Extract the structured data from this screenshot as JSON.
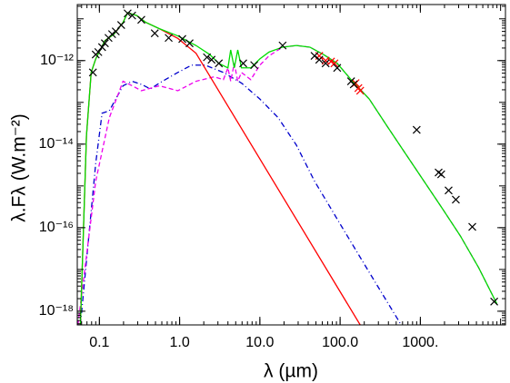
{
  "chart_data": {
    "type": "line",
    "x_label": "λ (µm)",
    "y_label": "λ.Fλ (W.m⁻²)",
    "xscale": "log",
    "yscale": "log",
    "minor_ticks": true,
    "xlim": [
      0.053,
      11500
    ],
    "ylim": [
      4.7e-19,
      2.2e-11
    ],
    "xticks": [
      0.1,
      {
        "value": 1,
        "label": "1.0"
      },
      {
        "value": 10,
        "label": "10.0"
      },
      {
        "value": 100,
        "label": "100.0"
      },
      {
        "value": 1000,
        "label": "1000."
      }
    ],
    "yticks": [
      {
        "value": 1e-18,
        "label": "10⁻¹⁸"
      },
      {
        "value": 1e-16,
        "label": "10⁻¹⁶"
      },
      {
        "value": 1e-14,
        "label": "10⁻¹⁴"
      },
      {
        "value": 1e-12,
        "label": "10⁻¹²"
      }
    ],
    "series": [
      {
        "color": "#0000cc",
        "style": "dashdot",
        "x": [
          0.058,
          0.09,
          0.108,
          0.133,
          0.197,
          0.256,
          0.333,
          0.433,
          0.56,
          0.95,
          1.41,
          2.08,
          3.51,
          5.9,
          10,
          16.9,
          28.5,
          48,
          105,
          231,
          577
        ],
        "values": [
          4.7e-19,
          3.5e-15,
          5.5e-14,
          6.3e-14,
          2.5e-13,
          3.2e-13,
          2.7e-13,
          2.1e-13,
          2.9e-13,
          5.2e-13,
          7.8e-13,
          7.8e-13,
          5.2e-13,
          2.9e-13,
          1.2e-13,
          4.3e-14,
          9.5e-15,
          1.3e-15,
          1.05e-16,
          8.5e-18,
          4.7e-19
        ]
      },
      {
        "color": "#ee00ee",
        "style": "dashed",
        "x": [
          0.054,
          0.09,
          0.133,
          0.197,
          0.256,
          0.333,
          0.56,
          0.95,
          1.6,
          2.7,
          3.51,
          4.0,
          4.33,
          4.8,
          5.3,
          5.9,
          7.7,
          10,
          13,
          19.2,
          28.5,
          42,
          62,
          92,
          137,
          231,
          390,
          658,
          1110,
          1875,
          3160,
          5330,
          9000
        ],
        "values": [
          4.7e-19,
          1.3e-15,
          4.3e-14,
          3.2e-13,
          2.5e-13,
          1.9e-13,
          2.5e-13,
          1.9e-13,
          3.2e-13,
          4.1e-13,
          3.5e-13,
          6.7e-13,
          3.2e-13,
          8.6e-13,
          3.2e-13,
          5.2e-13,
          3.5e-13,
          7.8e-13,
          1.3e-12,
          2.1e-12,
          2.3e-12,
          2.1e-12,
          1.4e-12,
          8.6e-13,
          3.5e-13,
          1.2e-13,
          2.6e-14,
          5.8e-15,
          1.3e-15,
          2.9e-16,
          6.3e-17,
          1.1e-17,
          1.5e-18
        ]
      },
      {
        "color": "#ff0000",
        "style": "solid",
        "x": [
          0.058,
          0.069,
          0.079,
          0.09,
          0.117,
          0.152,
          0.197,
          0.225,
          0.292,
          0.38,
          0.56,
          0.95,
          1.6,
          178
        ],
        "values": [
          4.7e-19,
          1.6e-14,
          5.2e-13,
          1.1e-12,
          3e-12,
          4.3e-12,
          8.2e-12,
          1.4e-11,
          1.2e-11,
          8.2e-12,
          5.8e-12,
          3.4e-12,
          1.5e-12,
          4.7e-19
        ]
      },
      {
        "color": "#00dd00",
        "style": "solid",
        "x": [
          0.058,
          0.069,
          0.079,
          0.09,
          0.117,
          0.152,
          0.197,
          0.225,
          0.292,
          0.38,
          0.56,
          0.95,
          1.6,
          2.37,
          3.08,
          4.0,
          4.33,
          4.8,
          5.3,
          5.9,
          7.7,
          10,
          13,
          19.2,
          28.5,
          42,
          62,
          92,
          137,
          231,
          390,
          658,
          1110,
          1875,
          3160,
          5330,
          9000
        ],
        "values": [
          4.7e-19,
          1.6e-14,
          5.2e-13,
          1.1e-12,
          3e-12,
          4.3e-12,
          8.2e-12,
          1.4e-11,
          1.2e-11,
          8.2e-12,
          5.8e-12,
          3.9e-12,
          2.3e-12,
          1.4e-12,
          8.6e-13,
          6.7e-13,
          1.8e-12,
          6.7e-13,
          1.8e-12,
          6.7e-13,
          6.7e-13,
          1.1e-12,
          1.6e-12,
          2.1e-12,
          2.3e-12,
          2.1e-12,
          1.4e-12,
          8.6e-13,
          3.5e-13,
          1.2e-13,
          2.6e-14,
          5.8e-15,
          1.3e-15,
          2.9e-16,
          6.3e-17,
          1.1e-17,
          1.5e-18
        ]
      },
      {
        "color": "#ff0000",
        "marker": "x",
        "x": [
          55,
          66,
          77,
          85,
          156,
          169,
          178
        ],
        "values": [
          1.3e-12,
          1e-12,
          9.5e-13,
          8.6e-13,
          2.9e-13,
          2.2e-13,
          1.9e-13
        ]
      },
      {
        "color": "#000000",
        "marker": "x",
        "x": [
          0.083,
          0.09,
          0.097,
          0.108,
          0.117,
          0.13,
          0.144,
          0.16,
          0.187,
          0.225,
          0.256,
          0.333,
          0.49,
          0.73,
          1.08,
          1.33,
          2.19,
          2.5,
          3.08,
          6.2,
          8.5,
          19.2,
          48,
          55,
          66,
          92,
          137,
          148,
          900,
          1690,
          1820,
          2250,
          2770,
          4440,
          8320
        ],
        "values": [
          5.2e-13,
          1.4e-12,
          1.6e-12,
          2.1e-12,
          2.6e-12,
          3.5e-12,
          4.3e-12,
          5e-12,
          7.1e-12,
          1.35e-11,
          1.2e-11,
          9.5e-12,
          4.5e-12,
          3.5e-12,
          3.3e-12,
          2.6e-12,
          1.2e-12,
          1.05e-12,
          8.6e-13,
          8.6e-13,
          7.8e-13,
          2.3e-12,
          1.3e-12,
          1.05e-12,
          8.6e-13,
          6.7e-13,
          3.2e-13,
          2.7e-13,
          2.2e-14,
          2.1e-15,
          1.9e-15,
          7.8e-16,
          4.7e-16,
          1.05e-16,
          1.7e-18
        ]
      }
    ]
  }
}
